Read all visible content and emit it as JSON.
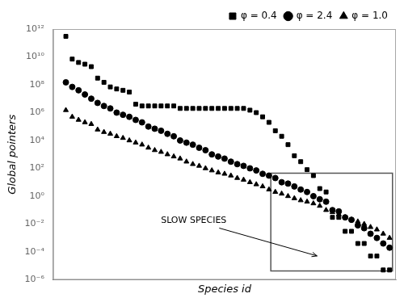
{
  "chart_data": {
    "type": "scatter",
    "xlabel": "Species id",
    "ylabel": "Global pointers",
    "log": "y",
    "grid": false,
    "legend": "upper right",
    "tick_labels": "y",
    "xlim": [
      -1,
      53
    ],
    "xticks": [],
    "ylim": [
      1e-06,
      1000000000000.0
    ],
    "yticks": [
      {
        "value": 1e-06,
        "label": "10⁻⁶"
      },
      {
        "value": 0.0001,
        "label": "10⁻⁴"
      },
      {
        "value": 0.01,
        "label": "10⁻²"
      },
      {
        "value": 1,
        "label": "10⁰"
      },
      {
        "value": 100.0,
        "label": "10²"
      },
      {
        "value": 10000.0,
        "label": "10⁴"
      },
      {
        "value": 1000000.0,
        "label": "10⁶"
      },
      {
        "value": 100000000.0,
        "label": "10⁸"
      },
      {
        "value": 10000000000.0,
        "label": "10¹⁰"
      },
      {
        "value": 1000000000000.0,
        "label": "10¹²"
      }
    ],
    "annotations": [
      "SLOW SPECIES"
    ],
    "series": [
      {
        "name": "φ = 0.4",
        "color": "#000000",
        "marker": "square",
        "x": [
          1,
          2,
          3,
          4,
          5,
          6,
          7,
          8,
          9,
          10,
          11,
          12,
          13,
          14,
          15,
          16,
          17,
          18,
          19,
          20,
          21,
          22,
          23,
          24,
          25,
          26,
          27,
          28,
          29,
          30,
          31,
          32,
          33,
          34,
          35,
          36,
          37,
          38,
          39,
          40,
          41,
          42,
          43,
          44,
          45,
          46,
          47,
          48,
          49,
          50,
          51,
          52
        ],
        "values": [
          300000000000.0,
          7000000000.0,
          4000000000.0,
          3000000000.0,
          2000000000.0,
          300000000.0,
          150000000.0,
          70000000.0,
          50000000.0,
          40000000.0,
          30000000.0,
          4000000.0,
          3000000.0,
          3000000.0,
          3000000.0,
          3000000.0,
          3000000.0,
          3000000.0,
          2000000.0,
          2000000.0,
          2000000.0,
          2000000.0,
          2000000.0,
          2000000.0,
          2000000.0,
          2000000.0,
          2000000.0,
          2000000.0,
          2000000.0,
          1500000.0,
          1000000.0,
          500000.0,
          200000.0,
          50000.0,
          20000.0,
          5000.0,
          800.0,
          300.0,
          80.0,
          30.0,
          3.5,
          2.0,
          0.03,
          0.03,
          0.003,
          0.003,
          0.0004,
          0.0004,
          5e-05,
          5e-05,
          5e-06,
          5e-06
        ]
      },
      {
        "name": "φ = 2.4",
        "color": "#000000",
        "marker": "circle",
        "x": [
          1,
          2,
          3,
          4,
          5,
          6,
          7,
          8,
          9,
          10,
          11,
          12,
          13,
          14,
          15,
          16,
          17,
          18,
          19,
          20,
          21,
          22,
          23,
          24,
          25,
          26,
          27,
          28,
          29,
          30,
          31,
          32,
          33,
          34,
          35,
          36,
          37,
          38,
          39,
          40,
          41,
          42,
          43,
          44,
          45,
          46,
          47,
          48,
          49,
          50,
          51,
          52
        ],
        "values": [
          150000000.0,
          70000000.0,
          40000000.0,
          20000000.0,
          10000000.0,
          5000000.0,
          3000000.0,
          2000000.0,
          1000000.0,
          700000.0,
          500000.0,
          300000.0,
          200000.0,
          100000.0,
          70000.0,
          50000.0,
          30000.0,
          20000.0,
          10000.0,
          7000.0,
          5000.0,
          3000.0,
          2000.0,
          1000.0,
          700.0,
          500.0,
          300.0,
          200.0,
          150.0,
          100.0,
          70.0,
          40.0,
          30.0,
          20.0,
          10.0,
          8.0,
          5.0,
          3.0,
          2.0,
          1.0,
          0.6,
          0.4,
          0.1,
          0.08,
          0.03,
          0.02,
          0.008,
          0.005,
          0.002,
          0.001,
          0.0004,
          0.0002
        ]
      },
      {
        "name": "φ = 1.0",
        "color": "#000000",
        "marker": "triangle",
        "x": [
          1,
          2,
          3,
          4,
          5,
          6,
          7,
          8,
          9,
          10,
          11,
          12,
          13,
          14,
          15,
          16,
          17,
          18,
          19,
          20,
          21,
          22,
          23,
          24,
          25,
          26,
          27,
          28,
          29,
          30,
          31,
          32,
          33,
          34,
          35,
          36,
          37,
          38,
          39,
          40,
          41,
          42,
          43,
          44,
          45,
          46,
          47,
          48,
          49,
          50,
          51,
          52
        ],
        "values": [
          1500000.0,
          500000.0,
          300000.0,
          200000.0,
          150000.0,
          60000.0,
          40000.0,
          30000.0,
          20000.0,
          15000.0,
          10000.0,
          7000.0,
          5000.0,
          3000.0,
          2000.0,
          1500.0,
          1000.0,
          700.0,
          500.0,
          300.0,
          200.0,
          150.0,
          100.0,
          70.0,
          50.0,
          40.0,
          30.0,
          20.0,
          15.0,
          10.0,
          7.0,
          5.0,
          3.0,
          2.0,
          1.5,
          1.0,
          0.7,
          0.5,
          0.4,
          0.3,
          0.2,
          0.1,
          0.07,
          0.05,
          0.03,
          0.02,
          0.015,
          0.01,
          0.006,
          0.004,
          0.002,
          0.001
        ]
      }
    ]
  }
}
